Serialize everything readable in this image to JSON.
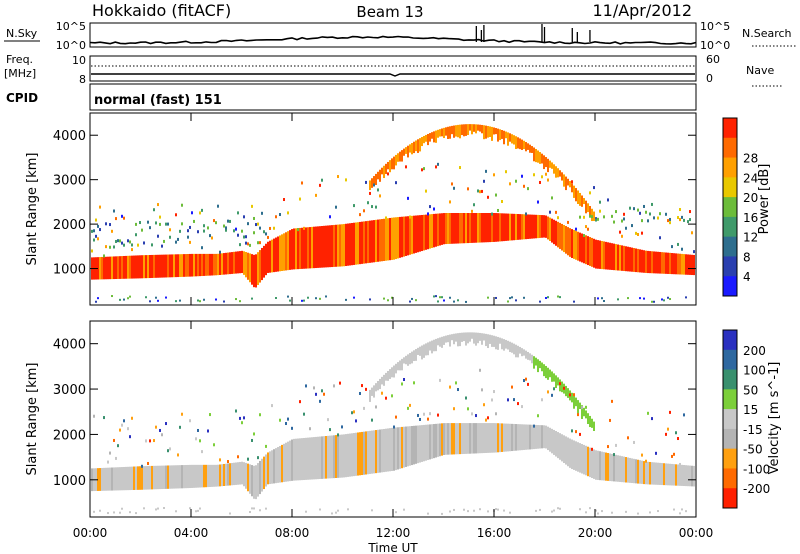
{
  "header": {
    "station": "Hokkaido (fitACF)",
    "beam": "Beam 13",
    "date": "11/Apr/2012"
  },
  "top_panels": {
    "nsky_label": "N.Sky",
    "nsky_ticks": [
      "10^5",
      "10^0"
    ],
    "nsearch_label": "N.Search",
    "nsearch_ticks": [
      "10^5",
      "10^0"
    ],
    "freq_label_1": "Freq.",
    "freq_label_2": "[MHz]",
    "freq_ticks": [
      "10",
      "8"
    ],
    "nave_label": "Nave",
    "nave_ticks": [
      "60",
      "0"
    ],
    "cpid_label": "CPID",
    "cpid_text": "normal (fast) 151"
  },
  "colors": {
    "power_scale": [
      "#1a1aff",
      "#2a3fb0",
      "#2e6e8e",
      "#3f9a6a",
      "#6cbc3a",
      "#e8c800",
      "#ffa000",
      "#ff6a00",
      "#ff2200"
    ],
    "velocity_scale": [
      "#2a30c0",
      "#2e68a0",
      "#39906e",
      "#7ccf3a",
      "#c8c8c8",
      "#b4b4b4",
      "#ffa010",
      "#ff6a00",
      "#ff2000"
    ]
  },
  "chart_data": [
    {
      "type": "heatmap",
      "name": "power",
      "ylabel": "Slant Range [km]",
      "yticks": [
        "1000",
        "2000",
        "3000",
        "4000"
      ],
      "ylim": [
        180,
        4500
      ],
      "colorbar_label": "Power [dB]",
      "colorbar_ticks": [
        "4",
        "8",
        "12",
        "16",
        "20",
        "24",
        "28"
      ],
      "bands": [
        {
          "comment_range_km": "main echo band",
          "x": [
            0,
            2,
            4,
            5,
            6,
            6.5,
            7,
            8,
            10,
            12,
            14,
            16,
            18,
            19,
            20,
            22,
            24
          ],
          "lower": [
            750,
            780,
            820,
            850,
            900,
            550,
            900,
            980,
            1050,
            1200,
            1550,
            1600,
            1700,
            1250,
            1000,
            900,
            850
          ],
          "upper": [
            1250,
            1300,
            1330,
            1330,
            1400,
            1300,
            1600,
            1900,
            2000,
            2150,
            2250,
            2250,
            2200,
            1900,
            1650,
            1400,
            1300
          ]
        }
      ]
    },
    {
      "type": "heatmap",
      "name": "velocity",
      "ylabel": "Slant Range [km]",
      "yticks": [
        "1000",
        "2000",
        "3000",
        "4000"
      ],
      "ylim": [
        180,
        4500
      ],
      "colorbar_label": "Velocity [m s^-1]",
      "colorbar_ticks": [
        "200",
        "100",
        "50",
        "15",
        "-15",
        "-50",
        "-100",
        "-200"
      ]
    }
  ],
  "xaxis": {
    "ticks": [
      "00:00",
      "04:00",
      "08:00",
      "12:00",
      "16:00",
      "20:00",
      "00:00"
    ],
    "label": "Time UT",
    "xlim_hours": [
      0,
      24
    ]
  }
}
